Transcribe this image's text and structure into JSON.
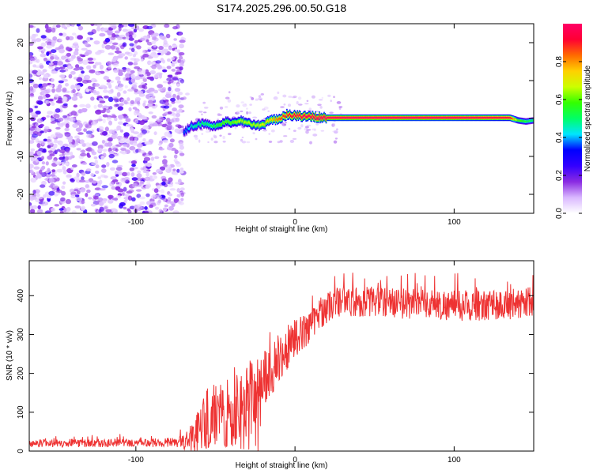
{
  "figure": {
    "title": "S174.2025.296.00.50.G18"
  },
  "chart_data": [
    {
      "type": "heatmap",
      "title": "",
      "xlabel": "Height of straight line (km)",
      "ylabel": "Frequency (Hz)",
      "xlim": [
        -167,
        150
      ],
      "ylim": [
        -25,
        25
      ],
      "xticks": [
        -100,
        0,
        100
      ],
      "yticks": [
        -20,
        -10,
        0,
        10,
        20
      ],
      "colorbar": {
        "label": "Normalized spectral amplitude",
        "range": [
          0,
          1
        ],
        "ticks": [
          "0.0",
          "0.2",
          "0.4",
          "0.6",
          "0.8"
        ],
        "colormap": [
          "#ffffff",
          "#d9b8ff",
          "#8a2be2",
          "#3300ff",
          "#0000ff",
          "#00e5ff",
          "#00ff66",
          "#33ff00",
          "#ccff00",
          "#ffd000",
          "#ff6a00",
          "#ff0033",
          "#ff0066"
        ]
      },
      "noise_region_x": [
        -167,
        -70
      ],
      "trace": {
        "x": [
          -70,
          -65,
          -60,
          -55,
          -50,
          -45,
          -40,
          -35,
          -30,
          -25,
          -20,
          -15,
          -10,
          -5,
          0,
          5,
          10,
          15,
          20,
          50,
          100,
          135,
          140,
          145,
          150
        ],
        "freq": [
          -3.5,
          -2,
          -1.5,
          -1.5,
          -2,
          -1,
          -1,
          -0.5,
          -1,
          -2,
          -1.5,
          -0.5,
          0,
          1,
          0.8,
          0.5,
          0.5,
          0.3,
          0.2,
          0.2,
          0.2,
          0.2,
          -0.5,
          -0.8,
          -0.5
        ],
        "amplitude": [
          0.35,
          0.45,
          0.5,
          0.5,
          0.55,
          0.6,
          0.6,
          0.65,
          0.65,
          0.65,
          0.7,
          0.75,
          0.85,
          0.9,
          0.95,
          0.97,
          0.98,
          1,
          1,
          1,
          1,
          0.95,
          0.6,
          0.55,
          0.5
        ]
      }
    },
    {
      "type": "line",
      "title": "",
      "xlabel": "Height of straight line (km)",
      "ylabel": "SNR (10 * v/v)",
      "xlim": [
        -167,
        150
      ],
      "ylim": [
        0,
        490
      ],
      "xticks": [
        -100,
        0,
        100
      ],
      "yticks": [
        0,
        100,
        200,
        300,
        400
      ],
      "line_color": "#ee3333",
      "envelope": {
        "x": [
          -167,
          -120,
          -80,
          -70,
          -65,
          -60,
          -55,
          -50,
          -45,
          -40,
          -35,
          -30,
          -25,
          -20,
          -15,
          -10,
          -5,
          0,
          5,
          10,
          15,
          20,
          25,
          30,
          40,
          50,
          70,
          100,
          130,
          140,
          150
        ],
        "mean": [
          20,
          20,
          22,
          25,
          40,
          75,
          110,
          130,
          120,
          130,
          150,
          160,
          170,
          185,
          205,
          235,
          265,
          290,
          305,
          325,
          350,
          370,
          380,
          385,
          385,
          385,
          380,
          375,
          375,
          380,
          385
        ],
        "spread": [
          10,
          10,
          12,
          15,
          30,
          45,
          55,
          60,
          60,
          65,
          70,
          70,
          70,
          70,
          65,
          60,
          55,
          50,
          45,
          40,
          40,
          40,
          40,
          40,
          40,
          40,
          40,
          40,
          40,
          40,
          40
        ]
      }
    }
  ]
}
